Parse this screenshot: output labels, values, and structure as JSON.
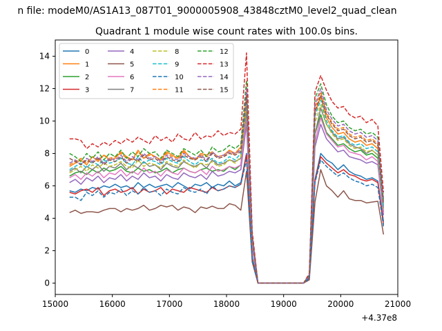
{
  "chart_data": {
    "type": "line",
    "suptitle": "n file: modeM0/AS1A13_087T01_9000005908_43848cztM0_level2_quad_clean",
    "title": "Quadrant 1 module wise count rates with 100.0s bins.",
    "xlabel": "",
    "ylabel": "",
    "x_offset_label": "+4.37e8",
    "xlim": [
      15000,
      21000
    ],
    "ylim": [
      -0.7,
      15
    ],
    "x_ticks": [
      "15000",
      "16000",
      "17000",
      "18000",
      "19000",
      "20000",
      "21000"
    ],
    "y_ticks": [
      "0",
      "2",
      "4",
      "6",
      "8",
      "10",
      "12",
      "14"
    ],
    "grid": false,
    "legend_position": "top-left",
    "x": [
      15250,
      15350,
      15450,
      15550,
      15650,
      15750,
      15850,
      15950,
      16050,
      16150,
      16250,
      16350,
      16450,
      16550,
      16650,
      16750,
      16850,
      16950,
      17050,
      17150,
      17250,
      17350,
      17450,
      17550,
      17650,
      17750,
      17850,
      17950,
      18050,
      18150,
      18250,
      18350,
      18450,
      18550,
      18650,
      18750,
      18850,
      18950,
      19050,
      19150,
      19250,
      19350,
      19450,
      19550,
      19650,
      19750,
      19850,
      19950,
      20050,
      20150,
      20250,
      20350,
      20450,
      20550,
      20650,
      20750
    ],
    "series": [
      {
        "name": "0",
        "color": "#1f77b4",
        "dashed": false,
        "values": [
          5.7,
          5.6,
          5.8,
          5.7,
          5.9,
          5.8,
          6.0,
          5.9,
          6.1,
          5.9,
          6.0,
          5.8,
          6.2,
          5.9,
          6.1,
          5.9,
          6.0,
          6.1,
          5.9,
          6.2,
          6.0,
          5.8,
          6.1,
          6.0,
          6.2,
          5.9,
          6.1,
          6.0,
          6.3,
          6.0,
          6.2,
          8.0,
          1.6,
          0,
          0,
          0,
          0,
          0,
          0,
          0,
          0,
          0,
          0.3,
          6.4,
          8.0,
          7.6,
          7.4,
          7.0,
          7.3,
          6.9,
          6.7,
          6.6,
          6.4,
          6.5,
          6.3,
          3.8
        ]
      },
      {
        "name": "1",
        "color": "#ff7f0e",
        "dashed": false,
        "values": [
          7.2,
          7.4,
          7.6,
          7.3,
          7.8,
          7.5,
          7.9,
          7.6,
          7.7,
          8.1,
          7.8,
          7.6,
          8.2,
          7.7,
          8.0,
          7.8,
          7.6,
          8.1,
          7.9,
          7.7,
          8.2,
          7.8,
          7.6,
          8.0,
          7.9,
          8.1,
          7.8,
          7.9,
          8.2,
          8.0,
          8.4,
          11.5,
          2.8,
          0,
          0,
          0,
          0,
          0,
          0,
          0,
          0,
          0,
          0.5,
          10.5,
          11.5,
          10.2,
          9.6,
          9.2,
          9.3,
          8.9,
          8.7,
          8.8,
          8.5,
          8.6,
          8.3,
          4.8
        ]
      },
      {
        "name": "2",
        "color": "#2ca02c",
        "dashed": false,
        "values": [
          6.6,
          6.8,
          6.9,
          6.7,
          7.0,
          6.8,
          7.1,
          6.9,
          7.0,
          7.2,
          6.9,
          6.8,
          7.1,
          6.9,
          7.0,
          6.8,
          6.9,
          7.1,
          6.8,
          7.0,
          7.1,
          6.9,
          6.8,
          7.0,
          7.1,
          6.9,
          7.0,
          6.9,
          7.2,
          7.0,
          7.3,
          10.5,
          2.6,
          0,
          0,
          0,
          0,
          0,
          0,
          0,
          0,
          0,
          0.4,
          9.2,
          10.4,
          9.3,
          8.9,
          8.5,
          8.6,
          8.3,
          8.1,
          8.2,
          7.9,
          8.0,
          7.7,
          4.4
        ]
      },
      {
        "name": "3",
        "color": "#d62728",
        "dashed": false,
        "values": [
          5.6,
          5.5,
          5.7,
          5.8,
          5.6,
          5.9,
          5.4,
          5.7,
          5.8,
          5.6,
          5.7,
          5.9,
          5.5,
          5.8,
          5.6,
          5.7,
          5.9,
          5.5,
          5.8,
          5.7,
          5.6,
          5.9,
          5.8,
          5.7,
          5.6,
          5.9,
          5.7,
          5.8,
          6.0,
          5.9,
          6.1,
          7.9,
          1.5,
          0,
          0,
          0,
          0,
          0,
          0,
          0,
          0,
          0,
          0.3,
          6.3,
          7.8,
          7.4,
          7.1,
          6.8,
          7.0,
          6.7,
          6.6,
          6.4,
          6.3,
          6.4,
          6.2,
          3.6
        ]
      },
      {
        "name": "4",
        "color": "#9467bd",
        "dashed": false,
        "values": [
          6.2,
          6.4,
          6.1,
          6.5,
          6.3,
          6.6,
          6.2,
          6.5,
          6.4,
          6.7,
          6.3,
          6.6,
          6.4,
          6.8,
          6.5,
          6.6,
          6.3,
          6.7,
          6.5,
          6.4,
          6.8,
          6.6,
          6.5,
          6.7,
          6.4,
          6.9,
          6.6,
          6.7,
          6.9,
          6.8,
          7.0,
          9.8,
          2.2,
          0,
          0,
          0,
          0,
          0,
          0,
          0,
          0,
          0,
          0.4,
          8.4,
          9.8,
          8.9,
          8.5,
          8.1,
          8.2,
          7.8,
          7.7,
          7.6,
          7.4,
          7.5,
          7.3,
          4.2
        ]
      },
      {
        "name": "5",
        "color": "#8c564b",
        "dashed": false,
        "values": [
          4.35,
          4.5,
          4.3,
          4.4,
          4.4,
          4.35,
          4.5,
          4.6,
          4.6,
          4.4,
          4.6,
          4.5,
          4.6,
          4.8,
          4.5,
          4.6,
          4.8,
          4.7,
          4.8,
          4.5,
          4.7,
          4.6,
          4.35,
          4.7,
          4.6,
          4.75,
          4.6,
          4.6,
          4.9,
          4.8,
          4.5,
          6.9,
          1.3,
          0,
          0,
          0,
          0,
          0,
          0,
          0,
          0,
          0,
          0.2,
          5.0,
          7.0,
          6.0,
          5.7,
          5.3,
          5.7,
          5.2,
          5.1,
          5.1,
          4.95,
          5.0,
          5.05,
          3.0
        ]
      },
      {
        "name": "6",
        "color": "#e377c2",
        "dashed": false,
        "values": [
          6.5,
          6.7,
          6.4,
          6.8,
          6.6,
          6.9,
          6.5,
          6.8,
          6.7,
          7.0,
          6.6,
          6.9,
          6.7,
          7.1,
          6.8,
          6.9,
          6.6,
          7.0,
          6.8,
          6.7,
          7.1,
          6.9,
          6.8,
          7.0,
          6.7,
          7.2,
          6.9,
          7.0,
          7.2,
          7.1,
          7.3,
          10.2,
          2.4,
          0,
          0,
          0,
          0,
          0,
          0,
          0,
          0,
          0,
          0.4,
          8.7,
          10.2,
          9.2,
          8.8,
          8.4,
          8.5,
          8.1,
          8.0,
          7.9,
          7.6,
          7.8,
          7.5,
          4.3
        ]
      },
      {
        "name": "7",
        "color": "#7f7f7f",
        "dashed": false,
        "values": [
          6.9,
          7.1,
          6.8,
          7.2,
          7.0,
          7.3,
          6.9,
          7.2,
          7.1,
          7.4,
          7.0,
          7.3,
          7.1,
          7.5,
          7.2,
          7.3,
          7.0,
          7.4,
          7.2,
          7.1,
          7.5,
          7.3,
          7.2,
          7.4,
          7.1,
          7.6,
          7.3,
          7.4,
          7.6,
          7.5,
          7.7,
          10.8,
          2.6,
          0,
          0,
          0,
          0,
          0,
          0,
          0,
          0,
          0,
          0.4,
          9.2,
          10.8,
          9.8,
          9.3,
          8.9,
          9.0,
          8.6,
          8.4,
          8.3,
          8.0,
          8.2,
          7.9,
          4.6
        ]
      },
      {
        "name": "8",
        "color": "#bcbd22",
        "dashed": true,
        "values": [
          6.8,
          7.0,
          7.2,
          6.9,
          7.3,
          7.1,
          7.4,
          7.2,
          7.3,
          7.5,
          7.2,
          7.1,
          7.6,
          7.2,
          7.4,
          7.3,
          7.1,
          7.5,
          7.3,
          7.2,
          7.6,
          7.3,
          7.1,
          7.4,
          7.3,
          7.5,
          7.2,
          7.3,
          7.6,
          7.4,
          7.8,
          11.0,
          2.7,
          0,
          0,
          0,
          0,
          0,
          0,
          0,
          0,
          0,
          0.5,
          9.9,
          11.0,
          9.8,
          9.2,
          8.8,
          8.9,
          8.5,
          8.3,
          8.4,
          8.1,
          8.2,
          7.9,
          4.6
        ]
      },
      {
        "name": "9",
        "color": "#17becf",
        "dashed": true,
        "values": [
          7.0,
          7.2,
          7.4,
          7.1,
          7.5,
          7.3,
          7.6,
          7.4,
          7.5,
          7.7,
          7.4,
          7.3,
          7.8,
          7.4,
          7.6,
          7.5,
          7.3,
          7.7,
          7.5,
          7.4,
          7.8,
          7.5,
          7.3,
          7.6,
          7.5,
          7.7,
          7.4,
          7.5,
          7.8,
          7.6,
          8.0,
          11.3,
          2.8,
          0,
          0,
          0,
          0,
          0,
          0,
          0,
          0,
          0,
          0.5,
          10.3,
          11.3,
          10.0,
          9.4,
          9.0,
          9.1,
          8.7,
          8.5,
          8.6,
          8.3,
          8.4,
          8.1,
          4.7
        ]
      },
      {
        "name": "10",
        "color": "#1f77b4",
        "dashed": true,
        "values": [
          5.3,
          5.3,
          5.1,
          5.6,
          5.4,
          5.7,
          5.3,
          5.6,
          5.5,
          5.8,
          5.4,
          5.7,
          5.5,
          5.9,
          5.6,
          5.7,
          5.4,
          5.8,
          5.6,
          5.5,
          5.9,
          5.7,
          5.6,
          5.8,
          5.5,
          6.0,
          5.7,
          5.8,
          6.0,
          5.9,
          6.1,
          7.6,
          1.5,
          0,
          0,
          0,
          0,
          0,
          0,
          0,
          0,
          0,
          0.3,
          6.2,
          7.6,
          7.2,
          6.9,
          6.6,
          6.8,
          6.5,
          6.3,
          6.2,
          6.0,
          6.1,
          5.9,
          3.5
        ]
      },
      {
        "name": "11",
        "color": "#ff7f0e",
        "dashed": true,
        "values": [
          7.3,
          7.5,
          7.7,
          7.4,
          7.8,
          7.6,
          7.9,
          7.7,
          7.8,
          8.0,
          7.7,
          7.6,
          8.1,
          7.7,
          7.9,
          7.8,
          7.6,
          8.0,
          7.8,
          7.7,
          8.1,
          7.8,
          7.6,
          7.9,
          7.8,
          8.0,
          7.7,
          7.8,
          8.1,
          7.9,
          8.3,
          11.8,
          2.9,
          0,
          0,
          0,
          0,
          0,
          0,
          0,
          0,
          0,
          0.5,
          10.8,
          11.8,
          10.5,
          9.9,
          9.5,
          9.6,
          9.2,
          9.0,
          9.1,
          8.8,
          8.9,
          8.6,
          5.0
        ]
      },
      {
        "name": "12",
        "color": "#2ca02c",
        "dashed": true,
        "values": [
          8.0,
          7.8,
          7.5,
          8.0,
          7.7,
          8.1,
          7.6,
          8.0,
          7.8,
          8.2,
          7.7,
          8.1,
          7.8,
          8.3,
          8.0,
          8.1,
          7.7,
          8.2,
          8.0,
          7.8,
          8.3,
          8.1,
          7.9,
          8.2,
          7.8,
          8.4,
          8.1,
          8.2,
          8.5,
          8.3,
          8.6,
          12.5,
          3.0,
          0,
          0,
          0,
          0,
          0,
          0,
          0,
          0,
          0,
          0.5,
          11.4,
          12.3,
          11.0,
          10.3,
          9.9,
          10.0,
          9.6,
          9.4,
          9.5,
          9.2,
          9.3,
          9.0,
          5.2
        ]
      },
      {
        "name": "13",
        "color": "#d62728",
        "dashed": true,
        "values": [
          8.9,
          8.9,
          8.8,
          8.3,
          8.6,
          8.4,
          8.7,
          8.5,
          8.8,
          8.6,
          8.9,
          8.7,
          9.0,
          8.8,
          8.6,
          9.1,
          8.8,
          9.0,
          8.7,
          9.2,
          8.9,
          8.8,
          9.3,
          8.9,
          9.1,
          9.0,
          9.4,
          9.1,
          9.3,
          9.2,
          9.5,
          14.2,
          3.2,
          0,
          0,
          0,
          0,
          0,
          0,
          0,
          0,
          0,
          0.6,
          11.8,
          12.8,
          11.9,
          11.2,
          10.8,
          10.9,
          10.4,
          10.2,
          10.3,
          9.9,
          10.1,
          9.7,
          5.6
        ]
      },
      {
        "name": "14",
        "color": "#9467bd",
        "dashed": true,
        "values": [
          7.4,
          7.6,
          7.3,
          7.7,
          7.5,
          7.8,
          7.4,
          7.7,
          7.6,
          7.9,
          7.5,
          7.8,
          7.6,
          8.0,
          7.7,
          7.8,
          7.5,
          7.9,
          7.7,
          7.6,
          8.0,
          7.8,
          7.7,
          7.9,
          7.6,
          8.1,
          7.8,
          7.9,
          8.1,
          8.0,
          8.2,
          12.0,
          2.9,
          0,
          0,
          0,
          0,
          0,
          0,
          0,
          0,
          0,
          0.5,
          11.0,
          12.0,
          10.7,
          10.1,
          9.7,
          9.8,
          9.4,
          9.2,
          9.3,
          9.0,
          9.1,
          8.8,
          5.1
        ]
      },
      {
        "name": "15",
        "color": "#8c564b",
        "dashed": true,
        "values": [
          7.7,
          7.5,
          7.3,
          7.6,
          7.4,
          7.7,
          7.3,
          7.6,
          7.5,
          7.8,
          7.4,
          7.7,
          7.5,
          7.9,
          7.6,
          7.7,
          7.4,
          7.8,
          7.6,
          7.5,
          7.9,
          7.7,
          7.6,
          7.8,
          7.5,
          8.0,
          7.7,
          7.8,
          8.0,
          7.9,
          8.1,
          11.6,
          2.8,
          0,
          0,
          0,
          0,
          0,
          0,
          0,
          0,
          0,
          0.5,
          10.6,
          11.6,
          10.4,
          9.8,
          9.4,
          9.5,
          9.1,
          8.9,
          9.0,
          8.7,
          8.8,
          8.5,
          4.9
        ]
      }
    ]
  }
}
